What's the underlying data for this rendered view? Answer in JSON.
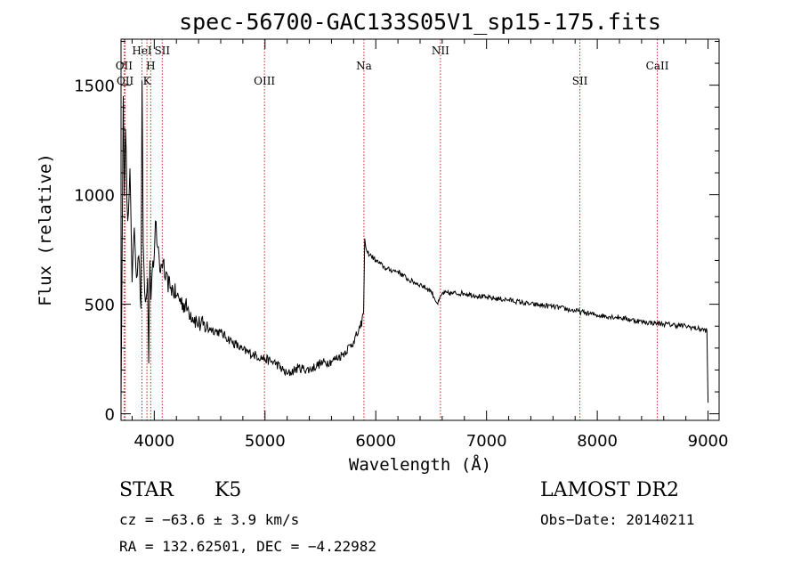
{
  "chart_data": {
    "type": "line",
    "title": "spec-56700-GAC133S05V1_sp15-175.fits",
    "xlabel": "Wavelength (Å)",
    "ylabel": "Flux (relative)",
    "xlim": [
      3700,
      9100
    ],
    "ylim": [
      -30,
      1710
    ],
    "xticks": [
      4000,
      5000,
      6000,
      7000,
      8000,
      9000
    ],
    "yticks": [
      0,
      500,
      1000,
      1500
    ],
    "series": [
      {
        "color": "#000000",
        "x": [
          3700,
          3720,
          3730,
          3740,
          3760,
          3780,
          3800,
          3820,
          3840,
          3860,
          3880,
          3890,
          3900,
          3920,
          3940,
          3950,
          3960,
          3970,
          3980,
          4000,
          4010,
          4030,
          4050,
          4080,
          4100,
          4150,
          4200,
          4300,
          4400,
          4500,
          4600,
          4700,
          4800,
          4900,
          5000,
          5100,
          5200,
          5300,
          5400,
          5500,
          5600,
          5700,
          5800,
          5860,
          5890,
          5900,
          5910,
          5920,
          5960,
          6000,
          6100,
          6200,
          6300,
          6400,
          6500,
          6560,
          6600,
          6700,
          6800,
          6900,
          7000,
          7200,
          7400,
          7600,
          7800,
          8000,
          8200,
          8400,
          8600,
          8800,
          8990,
          9000
        ],
        "y": [
          60,
          1450,
          1000,
          1300,
          880,
          1120,
          600,
          850,
          620,
          720,
          480,
          1520,
          780,
          510,
          620,
          230,
          700,
          520,
          640,
          720,
          880,
          760,
          650,
          700,
          610,
          580,
          540,
          480,
          410,
          390,
          370,
          330,
          290,
          270,
          250,
          230,
          180,
          210,
          200,
          230,
          240,
          270,
          330,
          390,
          460,
          800,
          760,
          740,
          720,
          700,
          660,
          650,
          610,
          590,
          560,
          500,
          550,
          550,
          550,
          540,
          530,
          520,
          500,
          490,
          470,
          450,
          440,
          420,
          410,
          400,
          380,
          50
        ]
      }
    ],
    "lines": [
      {
        "label": "OII",
        "x": 3727,
        "row": 2
      },
      {
        "label": "OII",
        "x": 3737,
        "row": 3
      },
      {
        "label": "HeI",
        "x": 3889,
        "row": 1
      },
      {
        "label": "H",
        "x": 3968,
        "row": 2
      },
      {
        "label": "K",
        "x": 3934,
        "row": 3
      },
      {
        "label": "SII",
        "x": 4072,
        "row": 1
      },
      {
        "label": "OIII",
        "x": 4995,
        "row": 3
      },
      {
        "label": "Na",
        "x": 5893,
        "row": 2
      },
      {
        "label": "NII",
        "x": 6584,
        "row": 1
      },
      {
        "label": "SII",
        "x": 7843,
        "row": 3
      },
      {
        "label": "CaII",
        "x": 8542,
        "row": 2
      }
    ],
    "line_color": "#d02020"
  },
  "info": {
    "class": "STAR",
    "subclass": "K5",
    "cz": "cz = −63.6 ± 3.9 km/s",
    "radec": "RA = 132.62501, DEC =  −4.22982",
    "survey": "LAMOST DR2",
    "obs_date": "Obs−Date: 20140211"
  }
}
